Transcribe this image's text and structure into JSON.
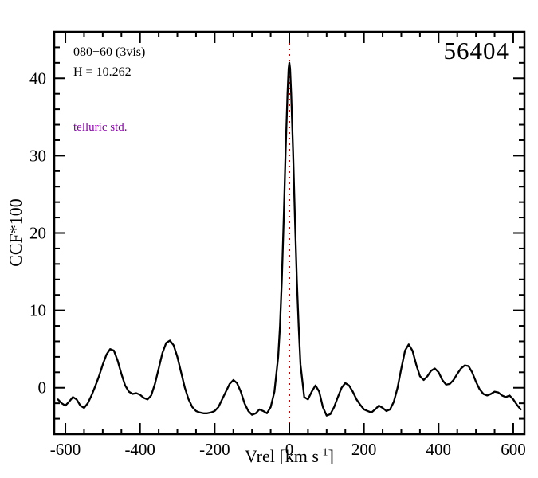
{
  "chart_data": {
    "type": "line",
    "title": "",
    "xlabel": {
      "pre": "Vrel [km s",
      "sup": "-1",
      "post": "]"
    },
    "ylabel": "CCF*100",
    "xlim": [
      -630,
      630
    ],
    "ylim": [
      -6,
      46
    ],
    "x_major_ticks": [
      -600,
      -400,
      -200,
      0,
      200,
      400,
      600
    ],
    "x_minor_step": 50,
    "y_major_ticks": [
      0,
      10,
      20,
      30,
      40
    ],
    "y_minor_step": 2,
    "grid": false,
    "legend": "none",
    "reference_line": {
      "x": 0,
      "color": "#cc0000",
      "style": "dotted"
    },
    "annotations": {
      "field": "080+60 (3vis)",
      "hmag": "H = 10.262",
      "telluric": "telluric std.",
      "telluric_color": "#8800aa",
      "mjd": "56404"
    },
    "series": [
      {
        "name": "CCF",
        "color": "#000000",
        "x": [
          -620,
          -610,
          -600,
          -590,
          -580,
          -570,
          -560,
          -550,
          -540,
          -530,
          -520,
          -510,
          -500,
          -490,
          -480,
          -470,
          -460,
          -450,
          -440,
          -430,
          -420,
          -410,
          -400,
          -390,
          -380,
          -370,
          -360,
          -350,
          -340,
          -330,
          -320,
          -310,
          -300,
          -290,
          -280,
          -270,
          -260,
          -250,
          -240,
          -230,
          -220,
          -210,
          -200,
          -190,
          -180,
          -170,
          -160,
          -150,
          -140,
          -130,
          -120,
          -110,
          -100,
          -90,
          -80,
          -70,
          -60,
          -50,
          -40,
          -30,
          -25,
          -20,
          -15,
          -10,
          -5,
          -2,
          0,
          2,
          5,
          10,
          15,
          20,
          25,
          30,
          40,
          50,
          60,
          70,
          80,
          90,
          100,
          110,
          120,
          130,
          140,
          150,
          160,
          170,
          180,
          190,
          200,
          210,
          220,
          230,
          240,
          250,
          260,
          270,
          280,
          290,
          300,
          310,
          320,
          330,
          340,
          350,
          360,
          370,
          380,
          390,
          400,
          410,
          420,
          430,
          440,
          450,
          460,
          470,
          480,
          490,
          500,
          510,
          520,
          530,
          540,
          550,
          560,
          570,
          580,
          590,
          600,
          610,
          620
        ],
        "y": [
          -1.5,
          -2.0,
          -2.3,
          -1.8,
          -1.2,
          -1.5,
          -2.3,
          -2.6,
          -2.0,
          -1.0,
          0.2,
          1.5,
          3.0,
          4.3,
          5.0,
          4.8,
          3.5,
          1.8,
          0.3,
          -0.5,
          -0.8,
          -0.7,
          -0.9,
          -1.3,
          -1.5,
          -1.0,
          0.5,
          2.5,
          4.5,
          5.8,
          6.1,
          5.5,
          4.0,
          2.0,
          0.0,
          -1.5,
          -2.5,
          -3.0,
          -3.2,
          -3.3,
          -3.3,
          -3.2,
          -3.0,
          -2.5,
          -1.5,
          -0.5,
          0.5,
          1.0,
          0.6,
          -0.5,
          -2.0,
          -3.0,
          -3.5,
          -3.3,
          -2.8,
          -3.0,
          -3.3,
          -2.5,
          -0.5,
          4.0,
          8.0,
          14.0,
          22.0,
          30.5,
          38.0,
          41.3,
          42.0,
          41.3,
          38.0,
          30.5,
          22.0,
          14.0,
          8.0,
          3.0,
          -1.2,
          -1.5,
          -0.5,
          0.3,
          -0.5,
          -2.5,
          -3.6,
          -3.4,
          -2.5,
          -1.2,
          0.0,
          0.6,
          0.3,
          -0.5,
          -1.5,
          -2.2,
          -2.8,
          -3.0,
          -3.2,
          -2.8,
          -2.3,
          -2.6,
          -3.0,
          -2.8,
          -1.8,
          0.0,
          2.5,
          4.8,
          5.6,
          4.8,
          3.0,
          1.5,
          1.0,
          1.5,
          2.2,
          2.5,
          2.0,
          1.0,
          0.4,
          0.5,
          1.0,
          1.8,
          2.5,
          2.9,
          2.8,
          2.0,
          0.8,
          -0.2,
          -0.8,
          -1.0,
          -0.8,
          -0.5,
          -0.6,
          -1.0,
          -1.2,
          -1.0,
          -1.5,
          -2.2,
          -2.8
        ]
      }
    ]
  }
}
